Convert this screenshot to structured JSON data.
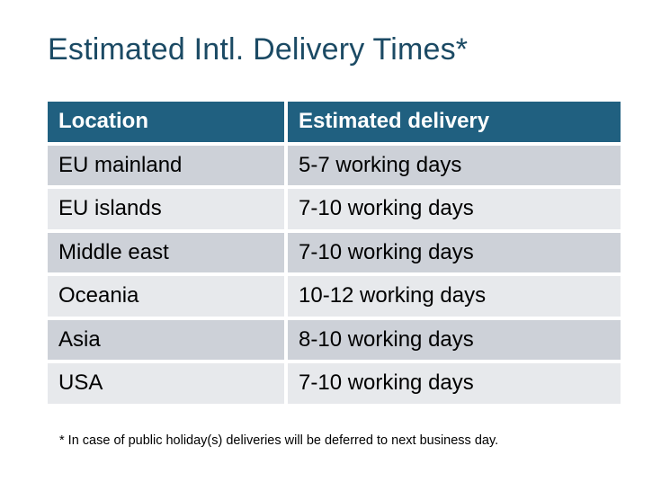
{
  "title": "Estimated Intl. Delivery Times*",
  "table": {
    "headers": [
      "Location",
      "Estimated delivery"
    ],
    "rows": [
      [
        "EU mainland",
        "5-7 working days"
      ],
      [
        "EU islands",
        "7-10 working days"
      ],
      [
        "Middle east",
        "7-10 working days"
      ],
      [
        "Oceania",
        "10-12 working days"
      ],
      [
        "Asia",
        "8-10 working days"
      ],
      [
        "USA",
        "7-10 working days"
      ]
    ]
  },
  "footnote": "* In case of public holiday(s) deliveries will be deferred to next business day.",
  "colors": {
    "title": "#1B4A64",
    "header_bg": "#206080",
    "row_dark": "#CDD1D8",
    "row_light": "#E7E9EC"
  }
}
